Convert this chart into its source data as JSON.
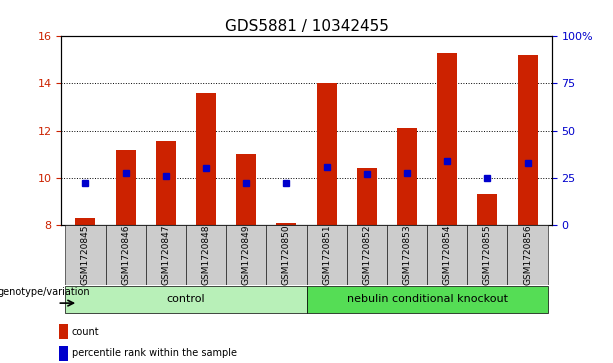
{
  "title": "GDS5881 / 10342455",
  "samples": [
    "GSM1720845",
    "GSM1720846",
    "GSM1720847",
    "GSM1720848",
    "GSM1720849",
    "GSM1720850",
    "GSM1720851",
    "GSM1720852",
    "GSM1720853",
    "GSM1720854",
    "GSM1720855",
    "GSM1720856"
  ],
  "count_values": [
    8.3,
    11.2,
    11.55,
    13.6,
    11.0,
    8.1,
    14.0,
    10.4,
    12.1,
    15.3,
    9.3,
    15.2
  ],
  "percentile_values": [
    9.8,
    10.2,
    10.1,
    10.4,
    9.8,
    9.8,
    10.45,
    10.15,
    10.2,
    10.7,
    10.0,
    10.65
  ],
  "count_bar_color": "#cc2200",
  "percentile_dot_color": "#0000cc",
  "ymin": 8,
  "ymax": 16,
  "yticks_left": [
    8,
    10,
    12,
    14,
    16
  ],
  "yticks_right": [
    0,
    25,
    50,
    75,
    100
  ],
  "yticks_right_labels": [
    "0",
    "25",
    "50",
    "75",
    "100%"
  ],
  "groups": [
    {
      "label": "control",
      "start": 0,
      "end": 5,
      "color": "#b8f0b8"
    },
    {
      "label": "nebulin conditional knockout",
      "start": 6,
      "end": 11,
      "color": "#55dd55"
    }
  ],
  "group_label_prefix": "genotype/variation",
  "legend_items": [
    {
      "color": "#cc2200",
      "label": "count"
    },
    {
      "color": "#0000cc",
      "label": "percentile rank within the sample"
    }
  ],
  "bar_width": 0.5,
  "background_color": "#ffffff",
  "title_fontsize": 11,
  "tick_label_fontsize": 7,
  "axis_tick_color_left": "#cc2200",
  "axis_tick_color_right": "#0000cc",
  "sample_cell_color": "#cccccc"
}
